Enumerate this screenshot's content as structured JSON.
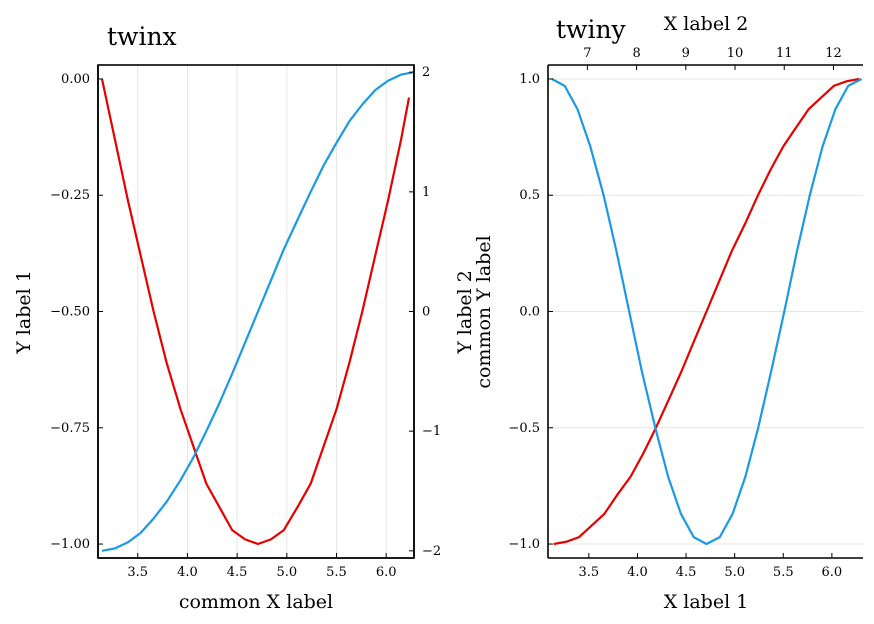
{
  "colors": {
    "red": "#e60000",
    "blue": "#1a9ae6"
  },
  "chart_data": [
    {
      "panel": "left",
      "type": "line",
      "title": "twinx",
      "xlabel": "common X label",
      "ylabel": "Y label 1",
      "ylabel_right": "Y label 2",
      "xlim": [
        3.1,
        6.28
      ],
      "ylim": [
        -1.03,
        0.03
      ],
      "ylim_right": [
        -2.06,
        2.06
      ],
      "x_ticks": [
        3.5,
        4.0,
        4.5,
        5.0,
        5.5,
        6.0
      ],
      "x_tick_labels": [
        "3.5",
        "4.0",
        "4.5",
        "5.0",
        "5.5",
        "6.0"
      ],
      "y_ticks": [
        0.0,
        -0.25,
        -0.5,
        -0.75,
        -1.0
      ],
      "y_tick_labels": [
        "0.00",
        "−0.25",
        "−0.50",
        "−0.75",
        "−1.00"
      ],
      "y_ticks_right": [
        2,
        1,
        0,
        -1,
        -2
      ],
      "y_tick_labels_right": [
        "2",
        "1",
        "0",
        "−1",
        "−2"
      ],
      "grid": "x",
      "series": [
        {
          "name": "red",
          "axis": "left",
          "x": [
            3.14,
            3.27,
            3.4,
            3.53,
            3.66,
            3.79,
            3.93,
            4.06,
            4.19,
            4.32,
            4.45,
            4.58,
            4.71,
            4.84,
            4.97,
            5.11,
            5.24,
            5.37,
            5.5,
            5.63,
            5.76,
            5.89,
            6.02,
            6.15,
            6.23
          ],
          "y": [
            0.0,
            -0.13,
            -0.26,
            -0.38,
            -0.5,
            -0.61,
            -0.71,
            -0.79,
            -0.87,
            -0.92,
            -0.97,
            -0.99,
            -1.0,
            -0.99,
            -0.97,
            -0.92,
            -0.87,
            -0.79,
            -0.71,
            -0.61,
            -0.5,
            -0.38,
            -0.26,
            -0.13,
            -0.04
          ]
        },
        {
          "name": "blue",
          "axis": "right",
          "x": [
            3.14,
            3.27,
            3.4,
            3.53,
            3.66,
            3.79,
            3.93,
            4.06,
            4.19,
            4.32,
            4.45,
            4.58,
            4.71,
            4.84,
            4.97,
            5.11,
            5.24,
            5.37,
            5.5,
            5.63,
            5.76,
            5.89,
            6.02,
            6.15,
            6.28
          ],
          "y": [
            -2.0,
            -1.98,
            -1.93,
            -1.85,
            -1.73,
            -1.59,
            -1.41,
            -1.22,
            -1.0,
            -0.77,
            -0.52,
            -0.26,
            0.0,
            0.26,
            0.52,
            0.77,
            1.0,
            1.22,
            1.41,
            1.59,
            1.73,
            1.85,
            1.93,
            1.98,
            2.0
          ]
        }
      ]
    },
    {
      "panel": "right",
      "type": "line",
      "title": "twiny",
      "xlabel": "X label 1",
      "xlabel_top": "X label 2",
      "ylabel": "common Y label",
      "xlim": [
        3.08,
        6.32
      ],
      "xlim_top": [
        6.2,
        12.6
      ],
      "ylim": [
        -1.06,
        1.06
      ],
      "x_ticks": [
        3.5,
        4.0,
        4.5,
        5.0,
        5.5,
        6.0
      ],
      "x_tick_labels": [
        "3.5",
        "4.0",
        "4.5",
        "5.0",
        "5.5",
        "6.0"
      ],
      "x_ticks_top": [
        7,
        8,
        9,
        10,
        11,
        12
      ],
      "x_tick_labels_top": [
        "7",
        "8",
        "9",
        "10",
        "11",
        "12"
      ],
      "y_ticks": [
        1.0,
        0.5,
        0.0,
        -0.5,
        -1.0
      ],
      "y_tick_labels": [
        "1.0",
        "0.5",
        "0.0",
        "−0.5",
        "−1.0"
      ],
      "grid": "y",
      "series": [
        {
          "name": "red",
          "axis": "bottom",
          "x": [
            3.14,
            3.27,
            3.4,
            3.53,
            3.66,
            3.79,
            3.93,
            4.06,
            4.19,
            4.32,
            4.45,
            4.58,
            4.71,
            4.84,
            4.97,
            5.11,
            5.24,
            5.37,
            5.5,
            5.63,
            5.76,
            5.89,
            6.02,
            6.15,
            6.28
          ],
          "y": [
            -1.0,
            -0.99,
            -0.97,
            -0.92,
            -0.87,
            -0.79,
            -0.71,
            -0.61,
            -0.5,
            -0.38,
            -0.26,
            -0.13,
            0.0,
            0.13,
            0.26,
            0.38,
            0.5,
            0.61,
            0.71,
            0.79,
            0.87,
            0.92,
            0.97,
            0.99,
            1.0
          ]
        },
        {
          "name": "blue",
          "axis": "top",
          "x": [
            6.28,
            6.54,
            6.8,
            7.06,
            7.33,
            7.59,
            7.85,
            8.11,
            8.38,
            8.64,
            8.9,
            9.16,
            9.42,
            9.69,
            9.95,
            10.21,
            10.47,
            10.73,
            11.0,
            11.26,
            11.52,
            11.78,
            12.04,
            12.3,
            12.57
          ],
          "y": [
            1.0,
            0.97,
            0.87,
            0.71,
            0.5,
            0.26,
            0.0,
            -0.26,
            -0.5,
            -0.71,
            -0.87,
            -0.97,
            -1.0,
            -0.97,
            -0.87,
            -0.71,
            -0.5,
            -0.26,
            0.0,
            0.26,
            0.5,
            0.71,
            0.87,
            0.97,
            1.0
          ]
        }
      ]
    }
  ]
}
